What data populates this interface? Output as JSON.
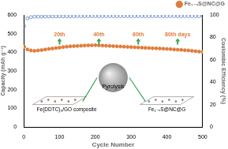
{
  "chart_data": {
    "type": "scatter",
    "x_label": "Cycle Number",
    "y_label": "Capacity (mAh g⁻¹)",
    "y2_label": "Coulombic Efficiency (%)",
    "x": [
      1,
      10,
      20,
      30,
      40,
      50,
      60,
      70,
      80,
      90,
      100,
      110,
      120,
      130,
      140,
      150,
      160,
      170,
      180,
      190,
      200,
      210,
      220,
      230,
      240,
      250,
      260,
      270,
      280,
      290,
      300,
      310,
      320,
      330,
      340,
      350,
      360,
      370,
      380,
      390,
      400,
      410,
      420,
      430,
      440,
      450,
      460,
      470,
      480,
      490,
      500
    ],
    "series": [
      {
        "name": "Fe₁₋ₓS@NC@G",
        "color": "#e07b39",
        "marker": "circle",
        "values": [
          430,
          415,
          410,
          408,
          410,
          412,
          415,
          418,
          420,
          423,
          425,
          428,
          430,
          432,
          433,
          434,
          435,
          436,
          437,
          437,
          438,
          437,
          436,
          435,
          434,
          433,
          432,
          431,
          430,
          429,
          428,
          427,
          426,
          425,
          424,
          423,
          422,
          421,
          420,
          419,
          418,
          417,
          415,
          414,
          413,
          411,
          410,
          408,
          406,
          404,
          402
        ]
      },
      {
        "color": "#5b7fc0",
        "marker": "circle-open",
        "axis": "y2",
        "values": [
          90,
          97,
          98,
          98.5,
          98.5,
          98.6,
          98.6,
          98.7,
          98.7,
          98.8,
          98.8,
          98.8,
          98.9,
          98.9,
          98.9,
          99,
          99,
          99,
          99,
          99,
          99,
          99,
          99,
          99,
          99,
          99,
          99,
          99,
          99,
          99,
          99,
          99,
          99,
          99,
          99,
          99,
          99,
          99,
          99,
          99,
          99,
          99,
          99,
          99,
          99,
          99,
          99,
          99,
          99,
          99,
          99
        ]
      }
    ],
    "xlim": [
      0,
      500
    ],
    "xticks": [
      0,
      100,
      200,
      300,
      400,
      500
    ],
    "ylim": [
      0,
      600
    ],
    "yticks": [
      0,
      100,
      200,
      300,
      400,
      500,
      600
    ],
    "y2lim": [
      0,
      100
    ],
    "y2ticks": [
      0,
      20,
      40,
      60,
      80,
      100
    ],
    "legend": "top-right",
    "grid": false,
    "annotations": [
      "20th",
      "40th",
      "60th",
      "80th days",
      "Pyrolysis",
      "Fe(DDTC)₃/GO composite",
      "Fe₁₋ₓS@NC@G"
    ]
  }
}
